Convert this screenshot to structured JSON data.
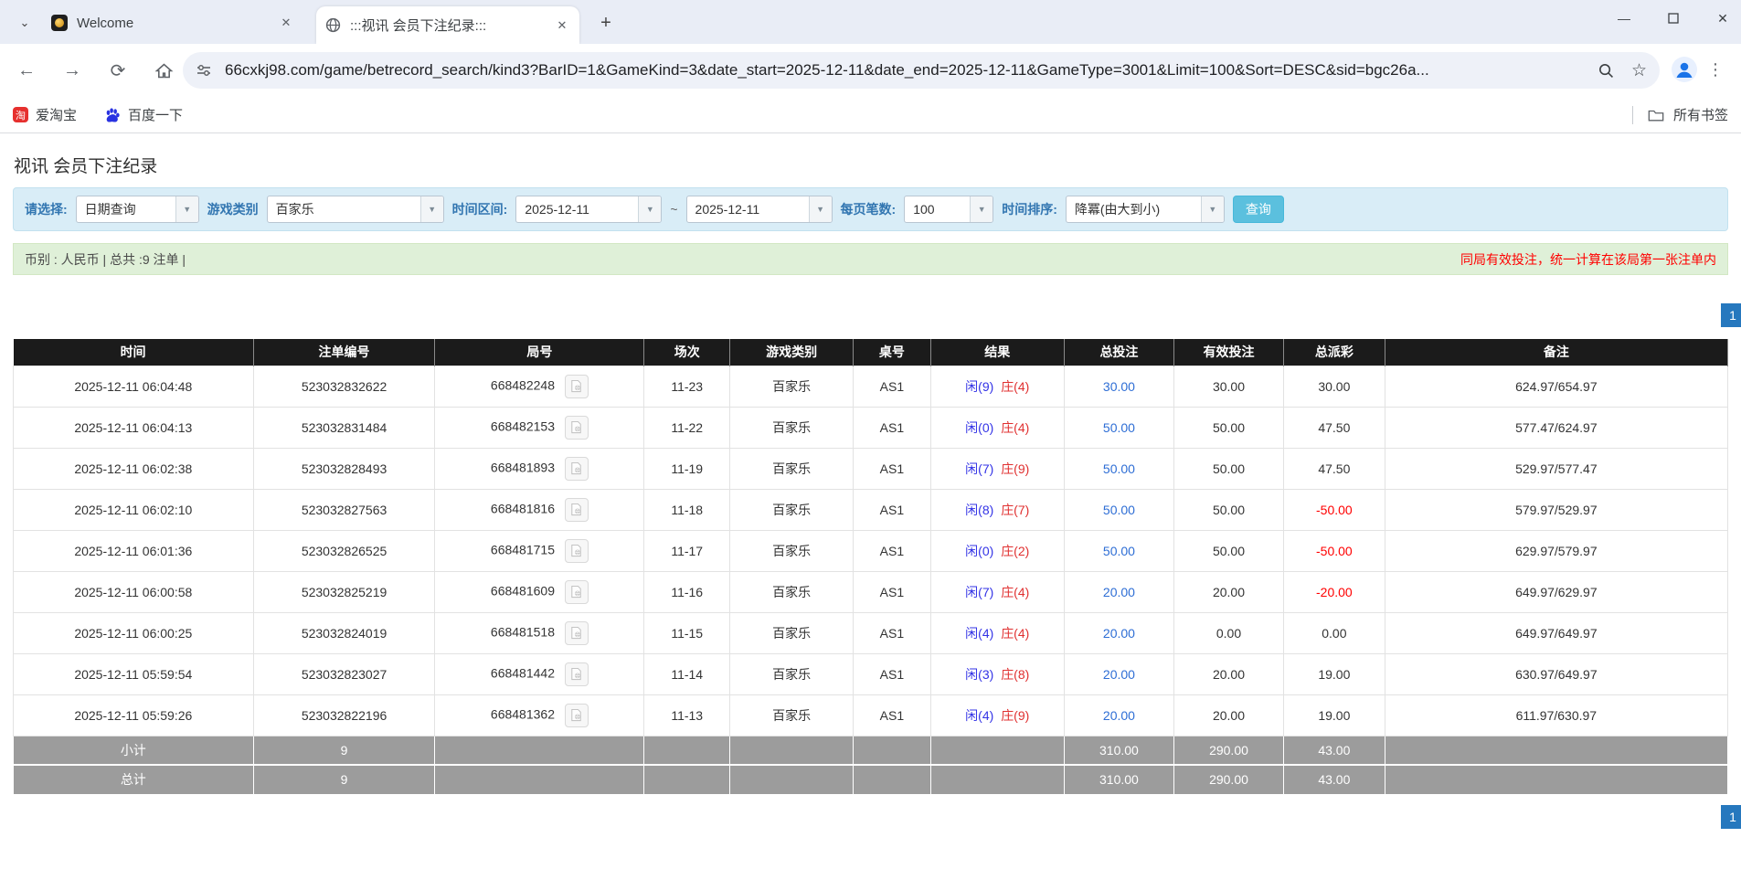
{
  "colors": {
    "header_bg": "#1b1b1b",
    "summary_bg": "#9c9c9c",
    "form_bg": "#d9edf7",
    "info_bg": "#dff0d8",
    "accent_button": "#5bc0de",
    "pagination_blue": "#2678be",
    "player_blue": "#3333e6",
    "banker_red": "#e03030",
    "negative_red": "#ff0000",
    "bet_link_blue": "#2e6ed5"
  },
  "browser": {
    "tabs": [
      {
        "title": "Welcome"
      },
      {
        "title": ":::视讯 会员下注纪录:::"
      }
    ],
    "url": "66cxkj98.com/game/betrecord_search/kind3?BarID=1&GameKind=3&date_start=2025-12-11&date_end=2025-12-11&GameType=3001&Limit=100&Sort=DESC&sid=bgc26a...",
    "bookmarks": [
      {
        "label": "爱淘宝"
      },
      {
        "label": "百度一下"
      }
    ],
    "bookmarks_right": "所有书签",
    "taobao_glyph": "淘"
  },
  "page": {
    "title": "视讯 会员下注纪录",
    "form": {
      "select_label": "请选择:",
      "select_value": "日期查询",
      "game_type_label": "游戏类别",
      "game_type_value": "百家乐",
      "date_range_label": "时间区间:",
      "date_start": "2025-12-11",
      "tilde": "~",
      "date_end": "2025-12-11",
      "per_page_label": "每页笔数:",
      "per_page_value": "100",
      "sort_label": "时间排序:",
      "sort_value": "降冪(由大到小)",
      "search_button": "查询"
    },
    "info_bar": {
      "left": "币别 : 人民币 | 总共 :9 注单 |",
      "right": "同局有效投注，统一计算在该局第一张注单内"
    },
    "pagination": "1",
    "table": {
      "headers": [
        "时间",
        "注单编号",
        "局号",
        "场次",
        "游戏类别",
        "桌号",
        "结果",
        "总投注",
        "有效投注",
        "总派彩",
        "备注"
      ],
      "rows": [
        {
          "time": "2025-12-11 06:04:48",
          "bet_id": "523032832622",
          "round": "668482248",
          "session": "11-23",
          "game": "百家乐",
          "table_no": "AS1",
          "player": "闲(9)",
          "banker": "庄(4)",
          "total_bet": "30.00",
          "valid_bet": "30.00",
          "payout": "30.00",
          "remark": "624.97/654.97"
        },
        {
          "time": "2025-12-11 06:04:13",
          "bet_id": "523032831484",
          "round": "668482153",
          "session": "11-22",
          "game": "百家乐",
          "table_no": "AS1",
          "player": "闲(0)",
          "banker": "庄(4)",
          "total_bet": "50.00",
          "valid_bet": "50.00",
          "payout": "47.50",
          "remark": "577.47/624.97"
        },
        {
          "time": "2025-12-11 06:02:38",
          "bet_id": "523032828493",
          "round": "668481893",
          "session": "11-19",
          "game": "百家乐",
          "table_no": "AS1",
          "player": "闲(7)",
          "banker": "庄(9)",
          "total_bet": "50.00",
          "valid_bet": "50.00",
          "payout": "47.50",
          "remark": "529.97/577.47"
        },
        {
          "time": "2025-12-11 06:02:10",
          "bet_id": "523032827563",
          "round": "668481816",
          "session": "11-18",
          "game": "百家乐",
          "table_no": "AS1",
          "player": "闲(8)",
          "banker": "庄(7)",
          "total_bet": "50.00",
          "valid_bet": "50.00",
          "payout": "-50.00",
          "remark": "579.97/529.97"
        },
        {
          "time": "2025-12-11 06:01:36",
          "bet_id": "523032826525",
          "round": "668481715",
          "session": "11-17",
          "game": "百家乐",
          "table_no": "AS1",
          "player": "闲(0)",
          "banker": "庄(2)",
          "total_bet": "50.00",
          "valid_bet": "50.00",
          "payout": "-50.00",
          "remark": "629.97/579.97"
        },
        {
          "time": "2025-12-11 06:00:58",
          "bet_id": "523032825219",
          "round": "668481609",
          "session": "11-16",
          "game": "百家乐",
          "table_no": "AS1",
          "player": "闲(7)",
          "banker": "庄(4)",
          "total_bet": "20.00",
          "valid_bet": "20.00",
          "payout": "-20.00",
          "remark": "649.97/629.97"
        },
        {
          "time": "2025-12-11 06:00:25",
          "bet_id": "523032824019",
          "round": "668481518",
          "session": "11-15",
          "game": "百家乐",
          "table_no": "AS1",
          "player": "闲(4)",
          "banker": "庄(4)",
          "total_bet": "20.00",
          "valid_bet": "0.00",
          "payout": "0.00",
          "remark": "649.97/649.97"
        },
        {
          "time": "2025-12-11 05:59:54",
          "bet_id": "523032823027",
          "round": "668481442",
          "session": "11-14",
          "game": "百家乐",
          "table_no": "AS1",
          "player": "闲(3)",
          "banker": "庄(8)",
          "total_bet": "20.00",
          "valid_bet": "20.00",
          "payout": "19.00",
          "remark": "630.97/649.97"
        },
        {
          "time": "2025-12-11 05:59:26",
          "bet_id": "523032822196",
          "round": "668481362",
          "session": "11-13",
          "game": "百家乐",
          "table_no": "AS1",
          "player": "闲(4)",
          "banker": "庄(9)",
          "total_bet": "20.00",
          "valid_bet": "20.00",
          "payout": "19.00",
          "remark": "611.97/630.97"
        }
      ],
      "subtotal": {
        "label": "小计",
        "count": "9",
        "total_bet": "310.00",
        "valid_bet": "290.00",
        "payout": "43.00"
      },
      "total": {
        "label": "总计",
        "count": "9",
        "total_bet": "310.00",
        "valid_bet": "290.00",
        "payout": "43.00"
      }
    }
  }
}
